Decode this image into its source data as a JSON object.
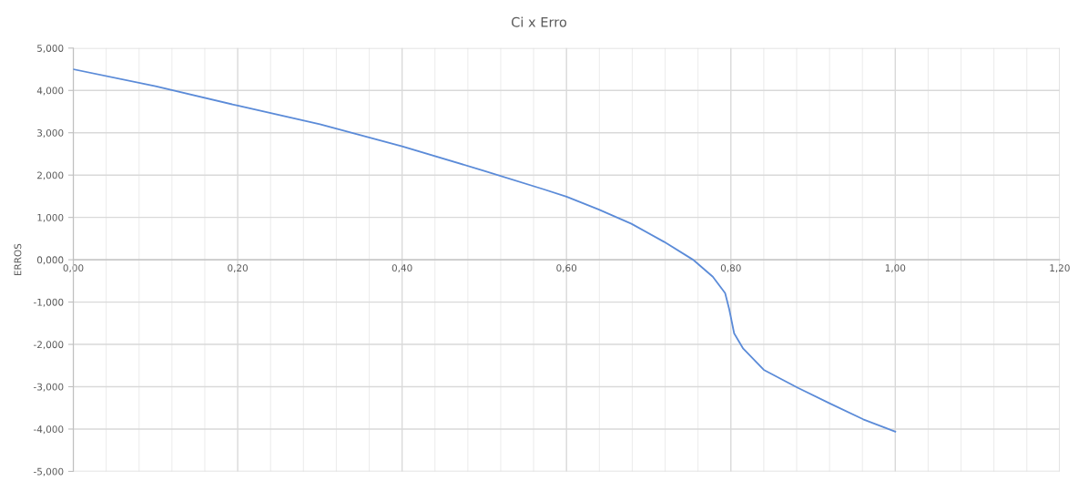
{
  "chart_data": {
    "type": "line",
    "title": "Ci x Erro",
    "ylabel": "ERROS",
    "series": [
      {
        "color": "#5b8bd8",
        "x": [
          0,
          0.1,
          0.2,
          0.3,
          0.4,
          0.5,
          0.573,
          0.6,
          0.639,
          0.679,
          0.719,
          0.754,
          0.778,
          0.793,
          0.798,
          0.804,
          0.815,
          0.84,
          0.881,
          0.921,
          0.961,
          1.0
        ],
        "values": [
          4.5,
          4.1,
          3.64,
          3.2,
          2.68,
          2.1,
          1.66,
          1.49,
          1.19,
          0.85,
          0.42,
          0,
          -0.4,
          -0.79,
          -1.17,
          -1.74,
          -2.1,
          -2.6,
          -3.02,
          -3.4,
          -3.77,
          -4.06
        ]
      }
    ],
    "xlim": [
      0,
      1.2
    ],
    "ylim": [
      -5,
      5
    ],
    "xticks": [
      {
        "value": 0,
        "label": "0,00"
      },
      {
        "value": 0.04,
        "label": null
      },
      {
        "value": 0.08,
        "label": null
      },
      {
        "value": 0.12,
        "label": null
      },
      {
        "value": 0.16,
        "label": null
      },
      {
        "value": 0.2,
        "label": "0,20"
      },
      {
        "value": 0.24,
        "label": null
      },
      {
        "value": 0.28,
        "label": null
      },
      {
        "value": 0.32,
        "label": null
      },
      {
        "value": 0.36,
        "label": null
      },
      {
        "value": 0.4,
        "label": "0,40"
      },
      {
        "value": 0.44,
        "label": null
      },
      {
        "value": 0.48,
        "label": null
      },
      {
        "value": 0.52,
        "label": null
      },
      {
        "value": 0.56,
        "label": null
      },
      {
        "value": 0.6,
        "label": "0,60"
      },
      {
        "value": 0.64,
        "label": null
      },
      {
        "value": 0.68,
        "label": null
      },
      {
        "value": 0.72,
        "label": null
      },
      {
        "value": 0.76,
        "label": null
      },
      {
        "value": 0.8,
        "label": "0,80"
      },
      {
        "value": 0.84,
        "label": null
      },
      {
        "value": 0.88,
        "label": null
      },
      {
        "value": 0.92,
        "label": null
      },
      {
        "value": 0.96,
        "label": null
      },
      {
        "value": 1.0,
        "label": "1,00"
      },
      {
        "value": 1.04,
        "label": null
      },
      {
        "value": 1.08,
        "label": null
      },
      {
        "value": 1.12,
        "label": null
      },
      {
        "value": 1.16,
        "label": null
      },
      {
        "value": 1.2,
        "label": "1,20"
      }
    ],
    "yticks": [
      {
        "value": -5,
        "label": "-5,000"
      },
      {
        "value": -4,
        "label": "-4,000"
      },
      {
        "value": -3,
        "label": "-3,000"
      },
      {
        "value": -2,
        "label": "-2,000"
      },
      {
        "value": -1,
        "label": "-1,000"
      },
      {
        "value": 0,
        "label": "0,000"
      },
      {
        "value": 1,
        "label": "1,000"
      },
      {
        "value": 2,
        "label": "2,000"
      },
      {
        "value": 3,
        "label": "3,000"
      },
      {
        "value": 4,
        "label": "4,000"
      },
      {
        "value": 5,
        "label": "5,000"
      }
    ],
    "grid": true,
    "marker": "none",
    "line_style": "solid"
  }
}
